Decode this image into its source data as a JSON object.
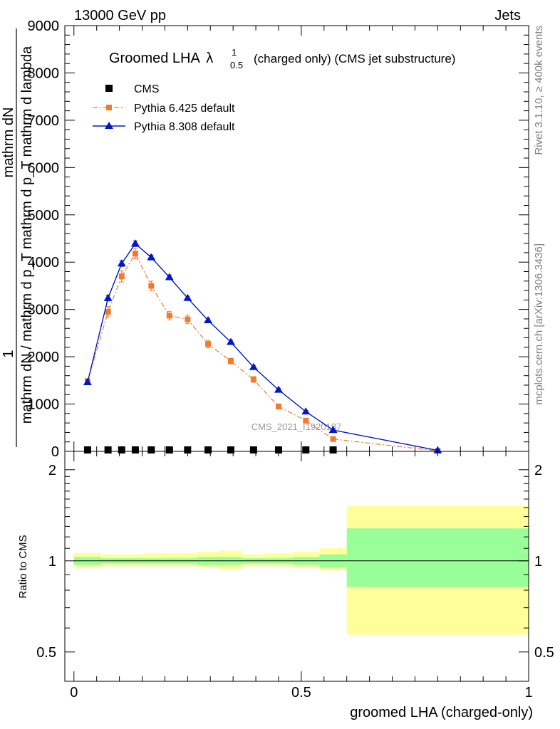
{
  "header": {
    "left": "13000 GeV pp",
    "right": "Jets"
  },
  "side_labels": {
    "rivet": "Rivet 3.1.10, ≥ 400k events",
    "mcplots": "mcplots.cern.ch [arXiv:1306.3436]"
  },
  "chart_data": [
    {
      "type": "line",
      "title": {
        "main": "Groomed LHA",
        "lambda": "λ",
        "sup": "1",
        "sub": "0.5",
        "suffix": "(charged only) (CMS jet substructure)"
      },
      "ylabel": {
        "one": "1",
        "numerator": "mathrm dN",
        "denominator": "mathrm dN / mathrm d p_T mathrm d p_T mathrm d lambda"
      },
      "watermark": "CMS_2021_I1920187",
      "ylim": [
        0,
        9000
      ],
      "yticks": [
        0,
        1000,
        2000,
        3000,
        4000,
        5000,
        6000,
        7000,
        8000,
        9000
      ],
      "ytick_labels": [
        "0",
        "1000",
        "2000",
        "3000",
        "4000",
        "5000",
        "6000",
        "7000",
        "8000",
        "9000"
      ],
      "legend": {
        "position": "top-left"
      },
      "series": [
        {
          "name": "CMS",
          "color": "#000000",
          "marker": "square",
          "x": [
            0.03,
            0.075,
            0.105,
            0.135,
            0.17,
            0.21,
            0.25,
            0.295,
            0.345,
            0.395,
            0.45,
            0.51,
            0.57
          ],
          "values": [
            15,
            15,
            15,
            15,
            15,
            15,
            15,
            15,
            15,
            15,
            15,
            15,
            15
          ]
        },
        {
          "name": "Pythia 6.425 default",
          "color": "#f47a2b",
          "marker": "square",
          "dash": "dashdot",
          "x": [
            0.03,
            0.075,
            0.105,
            0.135,
            0.17,
            0.21,
            0.25,
            0.295,
            0.345,
            0.395,
            0.45,
            0.51,
            0.57,
            0.8
          ],
          "values": [
            1480,
            2950,
            3700,
            4180,
            3500,
            2870,
            2790,
            2270,
            1910,
            1520,
            950,
            650,
            260,
            10
          ],
          "errors": [
            60,
            110,
            120,
            110,
            100,
            90,
            90,
            80,
            60,
            60,
            40,
            30,
            20,
            5
          ]
        },
        {
          "name": "Pythia 8.308 default",
          "color": "#0018c8",
          "marker": "triangle",
          "x": [
            0.03,
            0.075,
            0.105,
            0.135,
            0.17,
            0.21,
            0.25,
            0.295,
            0.345,
            0.395,
            0.45,
            0.51,
            0.57,
            0.8
          ],
          "values": [
            1460,
            3240,
            3970,
            4390,
            4100,
            3680,
            3240,
            2770,
            2310,
            1780,
            1300,
            840,
            450,
            20
          ],
          "errors": [
            50,
            60,
            60,
            60,
            50,
            50,
            40,
            40,
            40,
            30,
            30,
            20,
            15,
            5
          ]
        }
      ]
    },
    {
      "type": "area",
      "ylabel": "Ratio to CMS",
      "xlabel": "groomed LHA (charged-only)",
      "xlim": [
        -0.02,
        1.0
      ],
      "ylim": [
        0.4,
        2.3
      ],
      "xticks": [
        0,
        0.5,
        1
      ],
      "xtick_labels": [
        "0",
        "0.5",
        "1"
      ],
      "yticks": [
        0.5,
        1,
        2
      ],
      "ytick_labels": [
        "0.5",
        "1",
        "2"
      ],
      "bins": [
        0.0,
        0.06,
        0.09,
        0.12,
        0.15,
        0.19,
        0.23,
        0.27,
        0.32,
        0.37,
        0.42,
        0.48,
        0.54,
        0.6,
        1.0
      ],
      "stat_band": {
        "color": "#99ff99",
        "low": [
          0.97,
          0.98,
          0.98,
          0.98,
          0.98,
          0.98,
          0.98,
          0.97,
          0.97,
          0.98,
          0.98,
          0.97,
          0.95,
          0.82
        ],
        "high": [
          1.03,
          1.02,
          1.02,
          1.02,
          1.02,
          1.02,
          1.02,
          1.03,
          1.03,
          1.02,
          1.02,
          1.03,
          1.05,
          1.28
        ]
      },
      "syst_band": {
        "color": "#ffff99",
        "low": [
          0.95,
          0.96,
          0.96,
          0.96,
          0.96,
          0.96,
          0.96,
          0.95,
          0.94,
          0.96,
          0.96,
          0.95,
          0.93,
          0.57
        ],
        "high": [
          1.06,
          1.05,
          1.05,
          1.05,
          1.06,
          1.06,
          1.06,
          1.07,
          1.08,
          1.05,
          1.06,
          1.07,
          1.1,
          1.52
        ]
      },
      "reference_line": 1
    }
  ]
}
